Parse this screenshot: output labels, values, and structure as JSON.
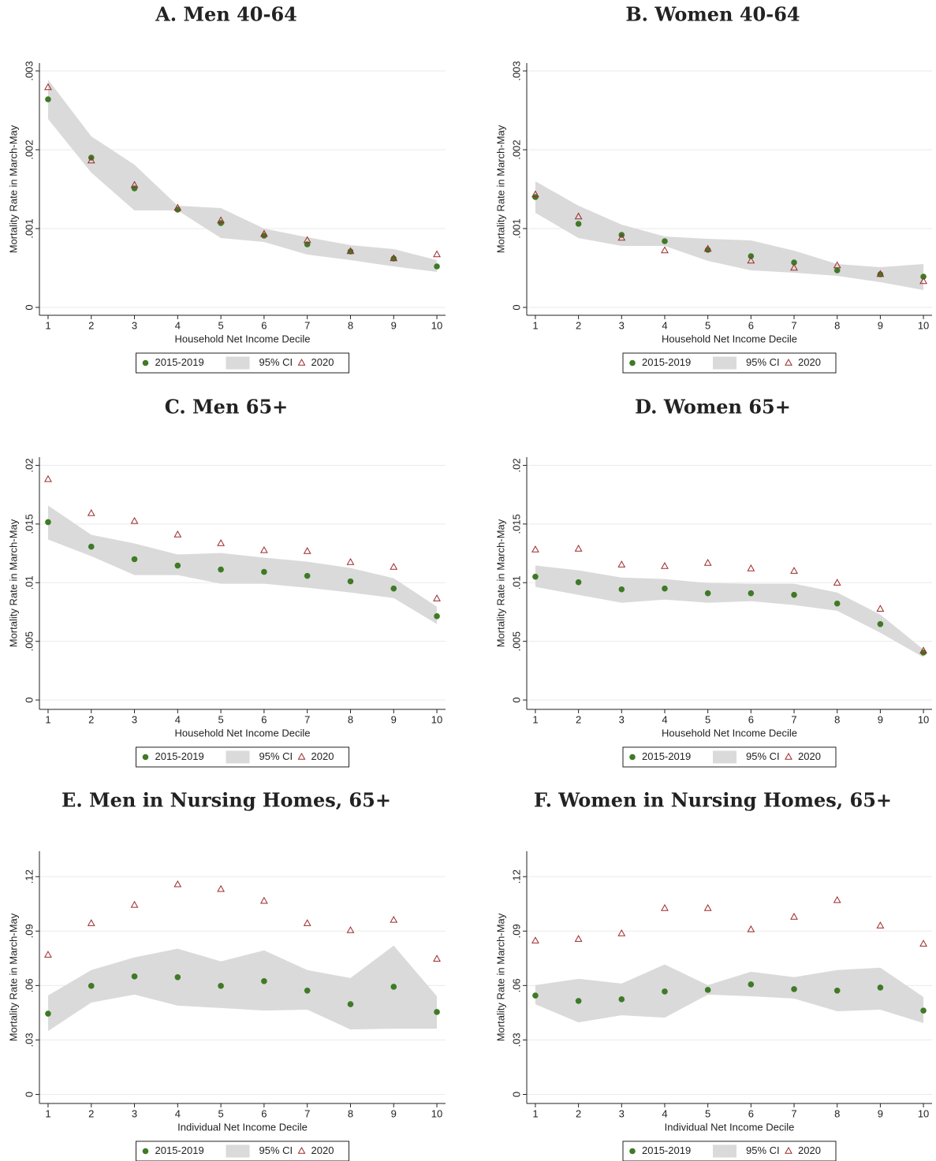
{
  "chart_data": [
    {
      "type": "scatter",
      "title": "A. Men 40-64",
      "xlabel": "Household Net Income Decile",
      "ylabel": "Mortality Rate in March-May",
      "x": [
        1,
        2,
        3,
        4,
        5,
        6,
        7,
        8,
        9,
        10
      ],
      "xlim": [
        0.8,
        10.2
      ],
      "xticks": [
        1,
        2,
        3,
        4,
        5,
        6,
        7,
        8,
        9,
        10
      ],
      "ylim": [
        -0.0001,
        0.0031
      ],
      "yticks": [
        0,
        {
          "value": 0.001,
          "label": ".001"
        },
        {
          "value": 0.002,
          "label": ".002"
        },
        {
          "value": 0.003,
          "label": ".003"
        }
      ],
      "grid": true,
      "legend": "bottom",
      "series": [
        {
          "name": "2015-2019",
          "color": "#3f7a26",
          "marker": "circle",
          "values": [
            0.00264,
            0.0019,
            0.00151,
            0.00124,
            0.00107,
            0.00091,
            0.0008,
            0.00071,
            0.00062,
            0.00052
          ]
        },
        {
          "name": "95% CI",
          "color": "#dadada",
          "marker": "band",
          "upper": [
            0.00289,
            0.00217,
            0.00181,
            0.00129,
            0.00126,
            0.001,
            0.00089,
            0.00079,
            0.00074,
            0.0006
          ],
          "lower": [
            0.00239,
            0.00171,
            0.00123,
            0.00123,
            0.00088,
            0.00083,
            0.00067,
            0.0006,
            0.00052,
            0.00045
          ]
        },
        {
          "name": "2020",
          "color": "#9b2a2a",
          "marker": "triangle",
          "values": [
            0.00279,
            0.00186,
            0.00155,
            0.00126,
            0.0011,
            0.00093,
            0.00085,
            0.00071,
            0.00062,
            0.00067
          ]
        }
      ]
    },
    {
      "type": "scatter",
      "title": "B. Women 40-64",
      "xlabel": "Household Net Income Decile",
      "ylabel": "Mortality Rate in March-May",
      "x": [
        1,
        2,
        3,
        4,
        5,
        6,
        7,
        8,
        9,
        10
      ],
      "xlim": [
        0.8,
        10.2
      ],
      "xticks": [
        1,
        2,
        3,
        4,
        5,
        6,
        7,
        8,
        9,
        10
      ],
      "ylim": [
        -0.0001,
        0.0031
      ],
      "yticks": [
        0,
        {
          "value": 0.001,
          "label": ".001"
        },
        {
          "value": 0.002,
          "label": ".002"
        },
        {
          "value": 0.003,
          "label": ".003"
        }
      ],
      "grid": true,
      "legend": "bottom",
      "series": [
        {
          "name": "2015-2019",
          "color": "#3f7a26",
          "marker": "circle",
          "values": [
            0.0014,
            0.00106,
            0.00092,
            0.00084,
            0.00073,
            0.00065,
            0.00057,
            0.00047,
            0.00042,
            0.00039
          ]
        },
        {
          "name": "95% CI",
          "color": "#dadada",
          "marker": "band",
          "upper": [
            0.0016,
            0.00129,
            0.00105,
            0.0009,
            0.00087,
            0.00085,
            0.00072,
            0.00055,
            0.00051,
            0.00055
          ],
          "lower": [
            0.0012,
            0.00088,
            0.00078,
            0.00078,
            0.00059,
            0.00047,
            0.00044,
            0.0004,
            0.00032,
            0.00022
          ]
        },
        {
          "name": "2020",
          "color": "#9b2a2a",
          "marker": "triangle",
          "values": [
            0.00143,
            0.00115,
            0.00088,
            0.00072,
            0.00074,
            0.00059,
            0.0005,
            0.00053,
            0.00042,
            0.00033
          ]
        }
      ]
    },
    {
      "type": "scatter",
      "title": "C. Men 65+",
      "xlabel": "Household Net Income Decile",
      "ylabel": "Mortality Rate in March-May",
      "x": [
        1,
        2,
        3,
        4,
        5,
        6,
        7,
        8,
        9,
        10
      ],
      "xlim": [
        0.8,
        10.2
      ],
      "xticks": [
        1,
        2,
        3,
        4,
        5,
        6,
        7,
        8,
        9,
        10
      ],
      "ylim": [
        -0.0008,
        0.0207
      ],
      "yticks": [
        0,
        {
          "value": 0.005,
          "label": ".005"
        },
        {
          "value": 0.01,
          "label": ".01"
        },
        {
          "value": 0.015,
          "label": ".015"
        },
        {
          "value": 0.02,
          "label": ".02"
        }
      ],
      "grid": true,
      "legend": "bottom",
      "series": [
        {
          "name": "2015-2019",
          "color": "#3f7a26",
          "marker": "circle",
          "values": [
            0.01516,
            0.01307,
            0.012,
            0.01146,
            0.01112,
            0.01092,
            0.01058,
            0.01011,
            0.0095,
            0.00714
          ]
        },
        {
          "name": "95% CI",
          "color": "#dadada",
          "marker": "band",
          "upper": [
            0.01658,
            0.01408,
            0.01334,
            0.0124,
            0.01253,
            0.01213,
            0.01179,
            0.01125,
            0.01038,
            0.00795
          ],
          "lower": [
            0.01368,
            0.01226,
            0.01065,
            0.01065,
            0.00991,
            0.00991,
            0.00957,
            0.00916,
            0.00869,
            0.00647
          ]
        },
        {
          "name": "2020",
          "color": "#9b2a2a",
          "marker": "triangle",
          "values": [
            0.0188,
            0.0159,
            0.01523,
            0.01408,
            0.01334,
            0.01274,
            0.01267,
            0.01173,
            0.01132,
            0.00863
          ]
        }
      ]
    },
    {
      "type": "scatter",
      "title": "D. Women 65+",
      "xlabel": "Household Net Income Decile",
      "ylabel": "Mortality Rate in March-May",
      "x": [
        1,
        2,
        3,
        4,
        5,
        6,
        7,
        8,
        9,
        10
      ],
      "xlim": [
        0.8,
        10.2
      ],
      "xticks": [
        1,
        2,
        3,
        4,
        5,
        6,
        7,
        8,
        9,
        10
      ],
      "ylim": [
        -0.0008,
        0.0207
      ],
      "yticks": [
        0,
        {
          "value": 0.005,
          "label": ".005"
        },
        {
          "value": 0.01,
          "label": ".01"
        },
        {
          "value": 0.015,
          "label": ".015"
        },
        {
          "value": 0.02,
          "label": ".02"
        }
      ],
      "grid": true,
      "legend": "bottom",
      "series": [
        {
          "name": "2015-2019",
          "color": "#3f7a26",
          "marker": "circle",
          "values": [
            0.01051,
            0.01004,
            0.00943,
            0.0095,
            0.0091,
            0.0091,
            0.00896,
            0.00822,
            0.00647,
            0.00404
          ]
        },
        {
          "name": "95% CI",
          "color": "#dadada",
          "marker": "band",
          "upper": [
            0.01146,
            0.01105,
            0.01044,
            0.01031,
            0.00997,
            0.00991,
            0.00991,
            0.00916,
            0.00728,
            0.00431
          ],
          "lower": [
            0.00964,
            0.00896,
            0.00829,
            0.00856,
            0.00829,
            0.00842,
            0.00809,
            0.00761,
            0.00573,
            0.00364
          ]
        },
        {
          "name": "2020",
          "color": "#9b2a2a",
          "marker": "triangle",
          "values": [
            0.0128,
            0.01287,
            0.01152,
            0.01139,
            0.01166,
            0.01119,
            0.01098,
            0.00997,
            0.00775,
            0.00418
          ]
        }
      ]
    },
    {
      "type": "scatter",
      "title": "E. Men in Nursing Homes, 65+",
      "xlabel": "Individual Net Income Decile",
      "ylabel": "Mortality Rate in March-May",
      "x": [
        1,
        2,
        3,
        4,
        5,
        6,
        7,
        8,
        9,
        10
      ],
      "xlim": [
        0.8,
        10.2
      ],
      "xticks": [
        1,
        2,
        3,
        4,
        5,
        6,
        7,
        8,
        9,
        10
      ],
      "ylim": [
        -0.005,
        0.134
      ],
      "yticks": [
        0,
        {
          "value": 0.03,
          "label": ".03"
        },
        {
          "value": 0.06,
          "label": ".06"
        },
        {
          "value": 0.09,
          "label": ".09"
        },
        {
          "value": 0.12,
          "label": ".12"
        }
      ],
      "grid": true,
      "legend": "bottom",
      "series": [
        {
          "name": "2015-2019",
          "color": "#3f7a26",
          "marker": "circle",
          "values": [
            0.0445,
            0.0598,
            0.065,
            0.0646,
            0.0598,
            0.0624,
            0.0572,
            0.0497,
            0.0593,
            0.0454
          ]
        },
        {
          "name": "95% CI",
          "color": "#dadada",
          "marker": "band",
          "upper": [
            0.0545,
            0.0685,
            0.0755,
            0.0803,
            0.0733,
            0.0794,
            0.0685,
            0.0641,
            0.082,
            0.0541
          ],
          "lower": [
            0.0349,
            0.0506,
            0.055,
            0.0489,
            0.0476,
            0.0462,
            0.0467,
            0.0358,
            0.0362,
            0.0362
          ]
        },
        {
          "name": "2020",
          "color": "#9b2a2a",
          "marker": "triangle",
          "values": [
            0.0768,
            0.0942,
            0.1043,
            0.1156,
            0.113,
            0.1065,
            0.0942,
            0.0903,
            0.096,
            0.0746
          ]
        }
      ]
    },
    {
      "type": "scatter",
      "title": "F. Women in Nursing Homes, 65+",
      "xlabel": "Individual Net Income Decile",
      "ylabel": "Mortality Rate in March-May",
      "x": [
        1,
        2,
        3,
        4,
        5,
        6,
        7,
        8,
        9,
        10
      ],
      "xlim": [
        0.8,
        10.2
      ],
      "xticks": [
        1,
        2,
        3,
        4,
        5,
        6,
        7,
        8,
        9,
        10
      ],
      "ylim": [
        -0.005,
        0.134
      ],
      "yticks": [
        0,
        {
          "value": 0.03,
          "label": ".03"
        },
        {
          "value": 0.06,
          "label": ".06"
        },
        {
          "value": 0.09,
          "label": ".09"
        },
        {
          "value": 0.12,
          "label": ".12"
        }
      ],
      "grid": true,
      "legend": "bottom",
      "series": [
        {
          "name": "2015-2019",
          "color": "#3f7a26",
          "marker": "circle",
          "values": [
            0.0545,
            0.0515,
            0.0524,
            0.0567,
            0.0576,
            0.0606,
            0.058,
            0.0572,
            0.0589,
            0.0462
          ]
        },
        {
          "name": "95% CI",
          "color": "#dadada",
          "marker": "band",
          "upper": [
            0.0602,
            0.0637,
            0.0611,
            0.0716,
            0.0602,
            0.0676,
            0.0646,
            0.0685,
            0.0698,
            0.0537
          ],
          "lower": [
            0.0497,
            0.0397,
            0.0436,
            0.0423,
            0.055,
            0.0541,
            0.0528,
            0.0458,
            0.0467,
            0.0393
          ]
        },
        {
          "name": "2020",
          "color": "#9b2a2a",
          "marker": "triangle",
          "values": [
            0.0846,
            0.0855,
            0.0886,
            0.1025,
            0.1025,
            0.0908,
            0.0977,
            0.1069,
            0.0929,
            0.0829
          ]
        }
      ]
    }
  ]
}
